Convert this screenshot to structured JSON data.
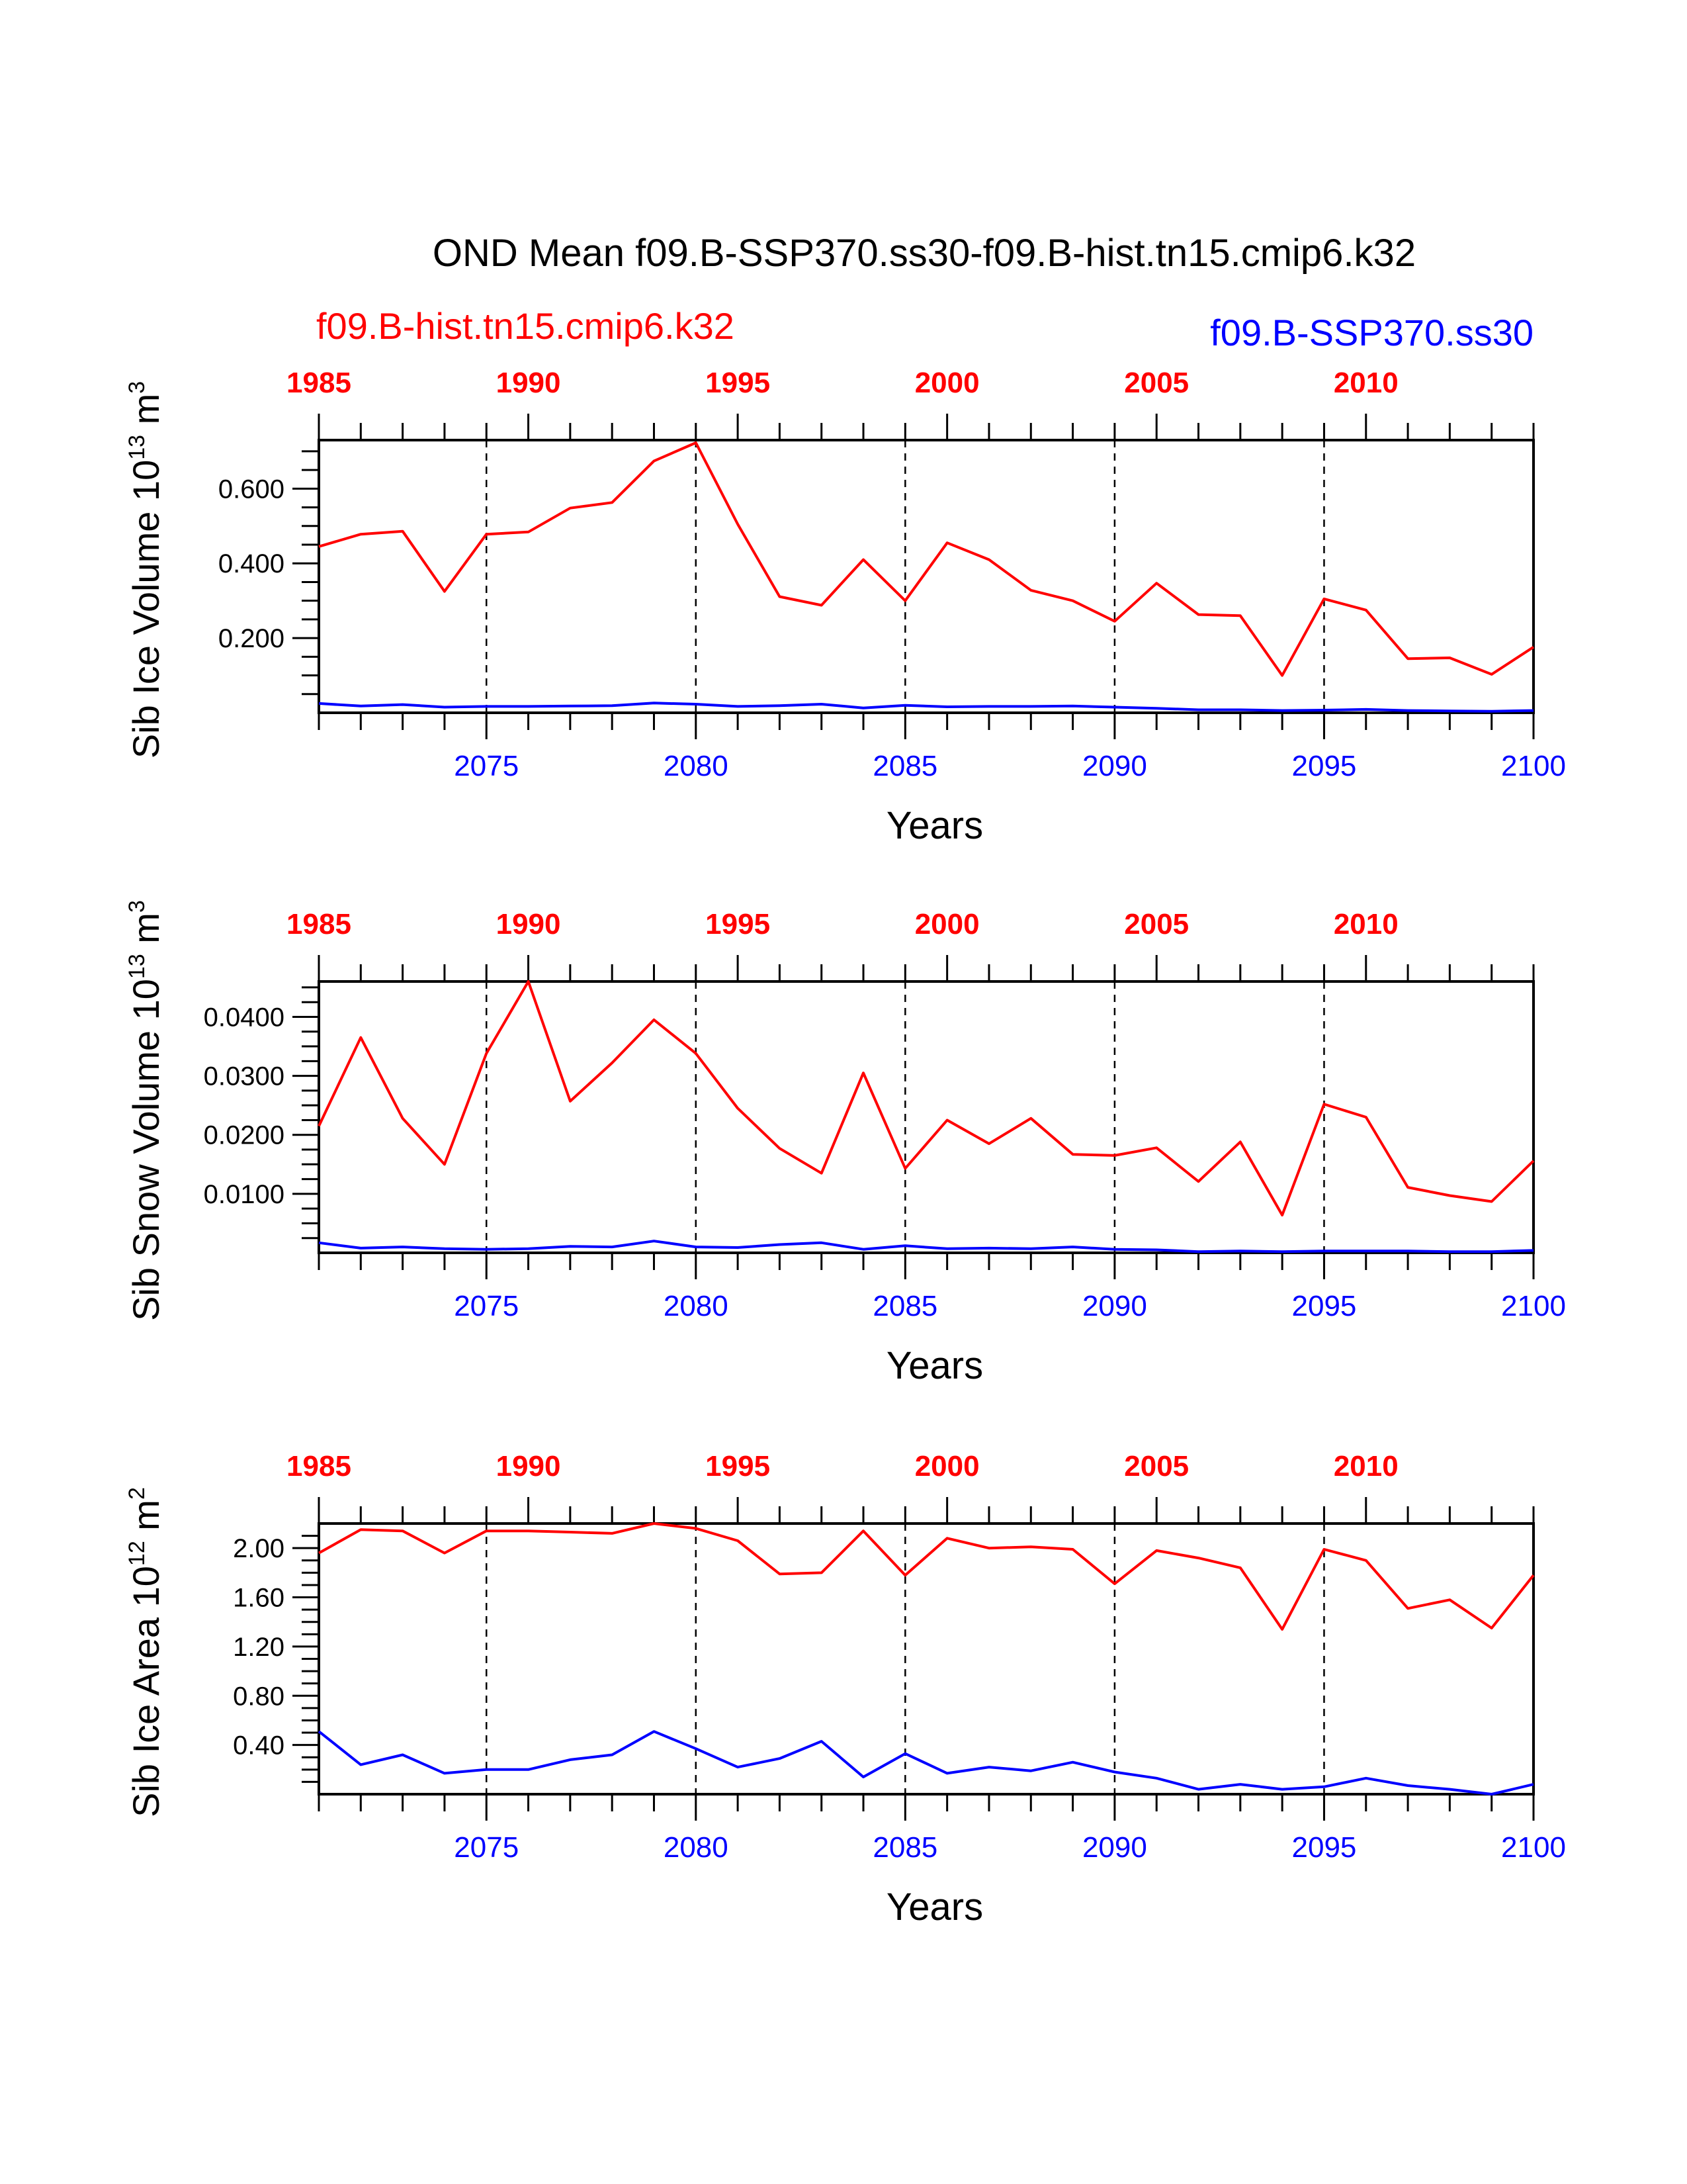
{
  "title": "OND Mean f09.B-SSP370.ss30-f09.B-hist.tn15.cmip6.k32",
  "legend": {
    "hist": "f09.B-hist.tn15.cmip6.k32",
    "ssp": "f09.B-SSP370.ss30"
  },
  "colors": {
    "hist": "#ff0000",
    "ssp": "#0000ff",
    "axis": "#000000"
  },
  "chart_data": [
    {
      "type": "line",
      "ylabel": "Sib Ice Volume 10",
      "ylabel_exp": "13",
      "ylabel_unit": " m",
      "ylabel_unit_exp": "3",
      "xlabel": "Years",
      "ylim": [
        0,
        0.73
      ],
      "yticks": [
        0.2,
        0.4,
        0.6
      ],
      "ytick_labels": [
        "0.200",
        "0.400",
        "0.600"
      ],
      "yminor": [
        0.05,
        0.1,
        0.15,
        0.25,
        0.3,
        0.35,
        0.45,
        0.5,
        0.55,
        0.65,
        0.7
      ],
      "x_bottom_ticks": [
        2075,
        2080,
        2085,
        2090,
        2095,
        2100
      ],
      "x_top_ticks": [
        1985,
        1990,
        1995,
        2000,
        2005,
        2010
      ],
      "dashed_years": [
        2075,
        2080,
        2085,
        2090,
        2095
      ],
      "series": [
        {
          "name": "f09.B-hist.tn15.cmip6.k32",
          "x": [
            1985,
            1986,
            1987,
            1988,
            1989,
            1990,
            1991,
            1992,
            1993,
            1994,
            1995,
            1996,
            1997,
            1998,
            1999,
            2000,
            2001,
            2002,
            2003,
            2004,
            2005,
            2006,
            2007,
            2008,
            2009,
            2010,
            2011,
            2012,
            2013,
            2014
          ],
          "values": [
            0.445,
            0.478,
            0.486,
            0.325,
            0.478,
            0.484,
            0.548,
            0.563,
            0.674,
            0.723,
            0.505,
            0.311,
            0.288,
            0.41,
            0.3,
            0.455,
            0.41,
            0.328,
            0.3,
            0.245,
            0.347,
            0.263,
            0.26,
            0.1,
            0.305,
            0.275,
            0.145,
            0.147,
            0.103,
            0.176
          ]
        },
        {
          "name": "f09.B-SSP370.ss30",
          "x": [
            2071,
            2072,
            2073,
            2074,
            2075,
            2076,
            2077,
            2078,
            2079,
            2080,
            2081,
            2082,
            2083,
            2084,
            2085,
            2086,
            2087,
            2088,
            2089,
            2090,
            2091,
            2092,
            2093,
            2094,
            2095,
            2096,
            2097,
            2098,
            2099,
            2100
          ],
          "values": [
            0.025,
            0.018,
            0.022,
            0.015,
            0.017,
            0.017,
            0.018,
            0.019,
            0.026,
            0.023,
            0.017,
            0.019,
            0.023,
            0.013,
            0.02,
            0.016,
            0.017,
            0.017,
            0.018,
            0.015,
            0.012,
            0.008,
            0.008,
            0.006,
            0.007,
            0.009,
            0.006,
            0.005,
            0.004,
            0.006
          ]
        }
      ]
    },
    {
      "type": "line",
      "ylabel": "Sib Snow Volume 10",
      "ylabel_exp": "13",
      "ylabel_unit": " m",
      "ylabel_unit_exp": "3",
      "xlabel": "Years",
      "ylim": [
        0,
        0.046
      ],
      "yticks": [
        0.01,
        0.02,
        0.03,
        0.04
      ],
      "ytick_labels": [
        "0.0100",
        "0.0200",
        "0.0300",
        "0.0400"
      ],
      "yminor": [
        0.0025,
        0.005,
        0.0075,
        0.0125,
        0.015,
        0.0175,
        0.0225,
        0.025,
        0.0275,
        0.0325,
        0.035,
        0.0375,
        0.0425,
        0.045
      ],
      "x_bottom_ticks": [
        2075,
        2080,
        2085,
        2090,
        2095,
        2100
      ],
      "x_top_ticks": [
        1985,
        1990,
        1995,
        2000,
        2005,
        2010
      ],
      "dashed_years": [
        2075,
        2080,
        2085,
        2090,
        2095
      ],
      "series": [
        {
          "name": "f09.B-hist.tn15.cmip6.k32",
          "x": [
            1985,
            1986,
            1987,
            1988,
            1989,
            1990,
            1991,
            1992,
            1993,
            1994,
            1995,
            1996,
            1997,
            1998,
            1999,
            2000,
            2001,
            2002,
            2003,
            2004,
            2005,
            2006,
            2007,
            2008,
            2009,
            2010,
            2011,
            2012,
            2013,
            2014
          ],
          "values": [
            0.0215,
            0.0365,
            0.0228,
            0.015,
            0.0338,
            0.046,
            0.0257,
            0.0322,
            0.0395,
            0.0338,
            0.0245,
            0.0177,
            0.0135,
            0.0305,
            0.0143,
            0.0225,
            0.0185,
            0.0228,
            0.0167,
            0.0165,
            0.0178,
            0.0121,
            0.0188,
            0.0064,
            0.0252,
            0.023,
            0.0111,
            0.0097,
            0.0087,
            0.0156
          ]
        },
        {
          "name": "f09.B-SSP370.ss30",
          "x": [
            2071,
            2072,
            2073,
            2074,
            2075,
            2076,
            2077,
            2078,
            2079,
            2080,
            2081,
            2082,
            2083,
            2084,
            2085,
            2086,
            2087,
            2088,
            2089,
            2090,
            2091,
            2092,
            2093,
            2094,
            2095,
            2096,
            2097,
            2098,
            2099,
            2100
          ],
          "values": [
            0.0017,
            0.0008,
            0.001,
            0.0007,
            0.0006,
            0.0007,
            0.0011,
            0.001,
            0.002,
            0.001,
            0.0009,
            0.0014,
            0.0017,
            0.0006,
            0.0012,
            0.0007,
            0.0008,
            0.0007,
            0.001,
            0.0006,
            0.0005,
            0.0002,
            0.0003,
            0.0002,
            0.0003,
            0.0003,
            0.0003,
            0.0002,
            0.0002,
            0.0004
          ]
        }
      ]
    },
    {
      "type": "line",
      "ylabel": "Sib Ice Area 10",
      "ylabel_exp": "12",
      "ylabel_unit": " m",
      "ylabel_unit_exp": "2",
      "xlabel": "Years",
      "ylim": [
        0,
        2.2
      ],
      "yticks": [
        0.4,
        0.8,
        1.2,
        1.6,
        2.0
      ],
      "ytick_labels": [
        "0.40",
        "0.80",
        "1.20",
        "1.60",
        "2.00"
      ],
      "yminor": [
        0.1,
        0.2,
        0.3,
        0.5,
        0.6,
        0.7,
        0.9,
        1.0,
        1.1,
        1.3,
        1.4,
        1.5,
        1.7,
        1.8,
        1.9,
        2.1
      ],
      "x_bottom_ticks": [
        2075,
        2080,
        2085,
        2090,
        2095,
        2100
      ],
      "x_top_ticks": [
        1985,
        1990,
        1995,
        2000,
        2005,
        2010
      ],
      "dashed_years": [
        2075,
        2080,
        2085,
        2090,
        2095
      ],
      "series": [
        {
          "name": "f09.B-hist.tn15.cmip6.k32",
          "x": [
            1985,
            1986,
            1987,
            1988,
            1989,
            1990,
            1991,
            1992,
            1993,
            1994,
            1995,
            1996,
            1997,
            1998,
            1999,
            2000,
            2001,
            2002,
            2003,
            2004,
            2005,
            2006,
            2007,
            2008,
            2009,
            2010,
            2011,
            2012,
            2013,
            2014
          ],
          "values": [
            1.96,
            2.15,
            2.14,
            1.96,
            2.14,
            2.14,
            2.13,
            2.12,
            2.2,
            2.16,
            2.06,
            1.79,
            1.8,
            2.14,
            1.78,
            2.08,
            2.0,
            2.01,
            1.99,
            1.71,
            1.98,
            1.92,
            1.84,
            1.34,
            1.99,
            1.9,
            1.51,
            1.58,
            1.35,
            1.78
          ]
        },
        {
          "name": "f09.B-SSP370.ss30",
          "x": [
            2071,
            2072,
            2073,
            2074,
            2075,
            2076,
            2077,
            2078,
            2079,
            2080,
            2081,
            2082,
            2083,
            2084,
            2085,
            2086,
            2087,
            2088,
            2089,
            2090,
            2091,
            2092,
            2093,
            2094,
            2095,
            2096,
            2097,
            2098,
            2099,
            2100
          ],
          "values": [
            0.51,
            0.24,
            0.32,
            0.17,
            0.2,
            0.2,
            0.28,
            0.32,
            0.51,
            0.37,
            0.22,
            0.29,
            0.43,
            0.14,
            0.33,
            0.17,
            0.22,
            0.19,
            0.26,
            0.18,
            0.13,
            0.04,
            0.08,
            0.04,
            0.06,
            0.13,
            0.07,
            0.04,
            0.0,
            0.08
          ]
        }
      ]
    }
  ]
}
